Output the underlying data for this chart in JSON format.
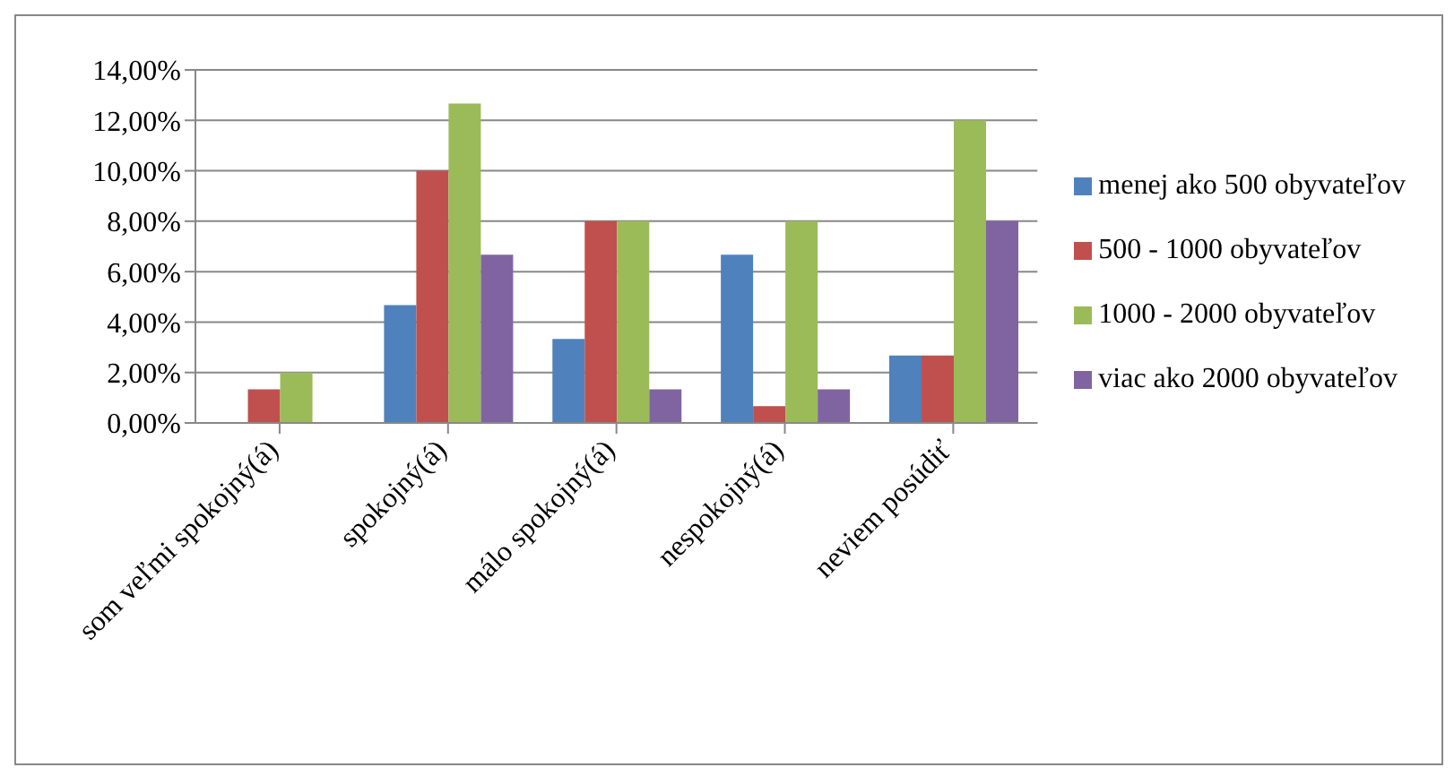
{
  "chart_data": {
    "type": "bar",
    "categories": [
      "som veľmi spokojný(á)",
      "spokojný(á)",
      "málo spokojný(á)",
      "nespokojný(á)",
      "neviem posúdiť"
    ],
    "series": [
      {
        "name": "menej ako 500 obyvateľov",
        "color": "#4f81bd",
        "values": [
          0,
          4.67,
          3.33,
          6.67,
          2.67
        ]
      },
      {
        "name": "500 - 1000 obyvateľov",
        "color": "#c0504d",
        "values": [
          1.33,
          10,
          8,
          0.67,
          2.67
        ]
      },
      {
        "name": "1000 - 2000 obyvateľov",
        "color": "#9bbb59",
        "values": [
          2,
          12.67,
          8,
          8,
          12
        ]
      },
      {
        "name": "viac ako 2000 obyvateľov",
        "color": "#8064a2",
        "values": [
          0,
          6.67,
          1.33,
          1.33,
          8
        ]
      }
    ],
    "ylim": [
      0,
      14
    ],
    "yticks": [
      {
        "value": 0,
        "label": "0,00%"
      },
      {
        "value": 2,
        "label": "2,00%"
      },
      {
        "value": 4,
        "label": "4,00%"
      },
      {
        "value": 6,
        "label": "6,00%"
      },
      {
        "value": 8,
        "label": "8,00%"
      },
      {
        "value": 10,
        "label": "10,00%"
      },
      {
        "value": 12,
        "label": "12,00%"
      },
      {
        "value": 14,
        "label": "14,00%"
      }
    ],
    "grid": "y",
    "legend": "right"
  }
}
